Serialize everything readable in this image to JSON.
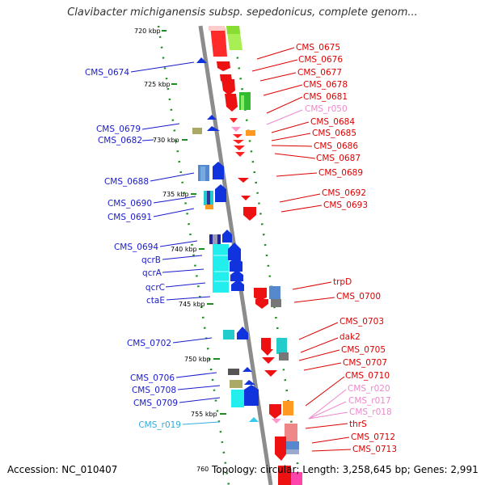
{
  "title": "Clavibacter michiganensis subsp. sepedonicus, complete genom...",
  "footer": {
    "accession_label": "Accession:",
    "accession": "NC_010407",
    "topology_label": "Topology:",
    "topology": "circular",
    "length_label": "Length:",
    "length": "3,258,645 bp",
    "genes_label": "Genes:",
    "genes": "2,991"
  },
  "colors": {
    "backbone": "#8c8c8c",
    "scale_dots": "#1e8c1e",
    "label_left": "#1a1acc",
    "label_right": "#dd0000",
    "label_rna_right": "#ee88cc",
    "label_rna_left": "#33aadd"
  },
  "scale_ticks": [
    "720 kbp",
    "725 kbp",
    "730 kbp",
    "735 kbp",
    "740 kbp",
    "745 kbp",
    "750 kbp",
    "755 kbp",
    "760"
  ],
  "left_genes": [
    "CMS_0674",
    "CMS_0679",
    "CMS_0682",
    "CMS_0688",
    "CMS_0690",
    "CMS_0691",
    "CMS_0694",
    "qcrB",
    "qcrA",
    "qcrC",
    "ctaE",
    "CMS_0702",
    "CMS_0706",
    "CMS_0708",
    "CMS_0709",
    "CMS_r019"
  ],
  "right_genes": [
    "CMS_0675",
    "CMS_0676",
    "CMS_0677",
    "CMS_0678",
    "CMS_0681",
    "CMS_r050",
    "CMS_0684",
    "CMS_0685",
    "CMS_0686",
    "CMS_0687",
    "CMS_0689",
    "CMS_0692",
    "CMS_0693",
    "trpD",
    "CMS_0700",
    "CMS_0703",
    "dak2",
    "CMS_0705",
    "CMS_0707",
    "CMS_0710",
    "CMS_r020",
    "CMS_r017",
    "CMS_r018",
    "thrS",
    "CMS_0712",
    "CMS_0713"
  ]
}
